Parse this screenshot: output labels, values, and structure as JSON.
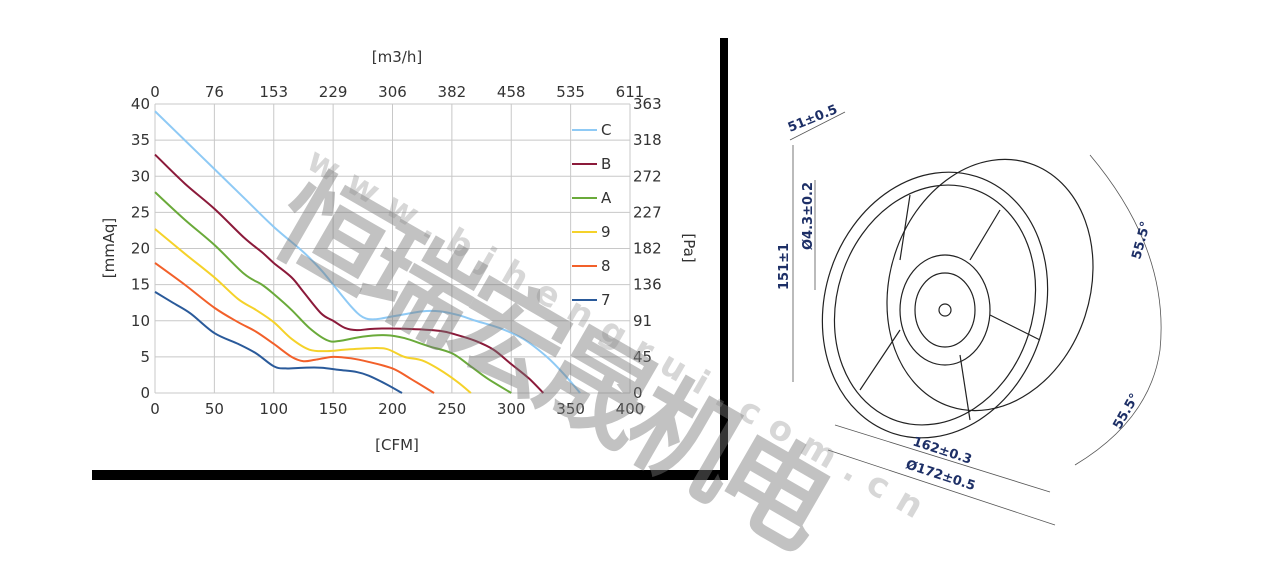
{
  "chart_data": {
    "type": "line",
    "xlabel": "[CFM]",
    "ylabel": "[mmAq]",
    "x2label": "[m3/h]",
    "y2label": "[Pa]",
    "xlim": [
      0,
      400
    ],
    "ylim": [
      0,
      40
    ],
    "xticks": [
      "0",
      "50",
      "100",
      "150",
      "200",
      "250",
      "300",
      "350",
      "400"
    ],
    "yticks": [
      "0",
      "5",
      "10",
      "15",
      "20",
      "25",
      "30",
      "35",
      "40"
    ],
    "x2ticks": [
      "0",
      "76",
      "153",
      "229",
      "306",
      "382",
      "458",
      "535",
      "611"
    ],
    "y2ticks": [
      "0",
      "45",
      "91",
      "136",
      "182",
      "227",
      "272",
      "318",
      "363"
    ],
    "grid": true,
    "legend_position": "top-right",
    "series": [
      {
        "name": "C",
        "color": "#8fcaf5",
        "points": [
          [
            0,
            39
          ],
          [
            25,
            35
          ],
          [
            50,
            31
          ],
          [
            75,
            27
          ],
          [
            100,
            23
          ],
          [
            125,
            19.5
          ],
          [
            140,
            17
          ],
          [
            150,
            15
          ],
          [
            165,
            12
          ],
          [
            175,
            10.5
          ],
          [
            185,
            10.2
          ],
          [
            200,
            10.6
          ],
          [
            225,
            11.3
          ],
          [
            240,
            11.3
          ],
          [
            255,
            10.8
          ],
          [
            270,
            10
          ],
          [
            290,
            9
          ],
          [
            310,
            7.5
          ],
          [
            330,
            5
          ],
          [
            345,
            2.5
          ],
          [
            358,
            0
          ]
        ]
      },
      {
        "name": "B",
        "color": "#8b1a3a",
        "points": [
          [
            0,
            33
          ],
          [
            25,
            29
          ],
          [
            50,
            25.5
          ],
          [
            75,
            21.5
          ],
          [
            90,
            19.5
          ],
          [
            100,
            18
          ],
          [
            115,
            16
          ],
          [
            125,
            14
          ],
          [
            140,
            11
          ],
          [
            150,
            10
          ],
          [
            160,
            9
          ],
          [
            170,
            8.7
          ],
          [
            185,
            8.9
          ],
          [
            210,
            8.9
          ],
          [
            240,
            8.6
          ],
          [
            255,
            8
          ],
          [
            270,
            7.2
          ],
          [
            285,
            6
          ],
          [
            300,
            4
          ],
          [
            315,
            2
          ],
          [
            327,
            0
          ]
        ]
      },
      {
        "name": "A",
        "color": "#6aaa3a",
        "points": [
          [
            0,
            27.8
          ],
          [
            25,
            24
          ],
          [
            50,
            20.5
          ],
          [
            75,
            16.5
          ],
          [
            90,
            15
          ],
          [
            100,
            13.7
          ],
          [
            115,
            11.5
          ],
          [
            130,
            9
          ],
          [
            145,
            7.3
          ],
          [
            155,
            7.2
          ],
          [
            175,
            7.8
          ],
          [
            195,
            8
          ],
          [
            210,
            7.6
          ],
          [
            230,
            6.5
          ],
          [
            250,
            5.5
          ],
          [
            265,
            3.8
          ],
          [
            280,
            2
          ],
          [
            300,
            0
          ]
        ]
      },
      {
        "name": "9",
        "color": "#f5d22a",
        "points": [
          [
            0,
            22.7
          ],
          [
            25,
            19.3
          ],
          [
            50,
            16
          ],
          [
            70,
            13
          ],
          [
            85,
            11.5
          ],
          [
            100,
            9.8
          ],
          [
            115,
            7.5
          ],
          [
            130,
            6
          ],
          [
            145,
            5.8
          ],
          [
            160,
            6
          ],
          [
            180,
            6.2
          ],
          [
            195,
            6.1
          ],
          [
            210,
            5
          ],
          [
            225,
            4.5
          ],
          [
            240,
            3.2
          ],
          [
            255,
            1.5
          ],
          [
            266,
            0
          ]
        ]
      },
      {
        "name": "8",
        "color": "#f2602a",
        "points": [
          [
            0,
            18
          ],
          [
            25,
            15
          ],
          [
            50,
            11.8
          ],
          [
            70,
            9.8
          ],
          [
            85,
            8.5
          ],
          [
            100,
            6.8
          ],
          [
            115,
            5
          ],
          [
            125,
            4.4
          ],
          [
            135,
            4.6
          ],
          [
            150,
            5
          ],
          [
            165,
            4.8
          ],
          [
            180,
            4.3
          ],
          [
            200,
            3.4
          ],
          [
            215,
            2
          ],
          [
            235,
            0
          ]
        ]
      },
      {
        "name": "7",
        "color": "#2a5a9a",
        "points": [
          [
            0,
            14
          ],
          [
            15,
            12.5
          ],
          [
            30,
            11
          ],
          [
            50,
            8.3
          ],
          [
            70,
            6.8
          ],
          [
            85,
            5.5
          ],
          [
            100,
            3.7
          ],
          [
            110,
            3.4
          ],
          [
            125,
            3.5
          ],
          [
            140,
            3.5
          ],
          [
            155,
            3.2
          ],
          [
            170,
            2.9
          ],
          [
            180,
            2.4
          ],
          [
            195,
            1.2
          ],
          [
            208,
            0
          ]
        ]
      }
    ]
  },
  "drawing": {
    "depth": "51±0.5",
    "height": "151±1",
    "hole": "Ø4.3±0.2",
    "hole_spacing": "162±0.3",
    "diameter": "Ø172±0.5",
    "angle_top": "55.5°",
    "angle_bottom": "55.5°"
  },
  "watermark": {
    "logo": "恒瑞宏晟机电",
    "url": "www.bjhengrui.com.cn"
  }
}
